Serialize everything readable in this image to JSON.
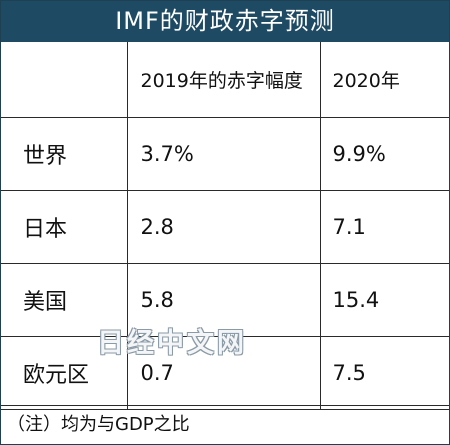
{
  "title": "IMF的财政赤字预测",
  "note": "（注）均为与GDP之比",
  "watermark": "日经中文网",
  "colors": {
    "title_bar": "#1f4a63",
    "title_text": "#ffffff",
    "grid_line": "#2a2a2a"
  },
  "chart_data": {
    "type": "table",
    "title": "IMF的财政赤字预测",
    "columns": [
      "",
      "2019年的赤字幅度",
      "2020年"
    ],
    "rows": [
      {
        "label": "世界",
        "values": [
          "3.7%",
          "9.9%"
        ]
      },
      {
        "label": "日本",
        "values": [
          "2.8",
          "7.1"
        ]
      },
      {
        "label": "美国",
        "values": [
          "5.8",
          "15.4"
        ]
      },
      {
        "label": "欧元区",
        "values": [
          "0.7",
          "7.5"
        ]
      }
    ],
    "note": "（注）均为与GDP之比"
  }
}
